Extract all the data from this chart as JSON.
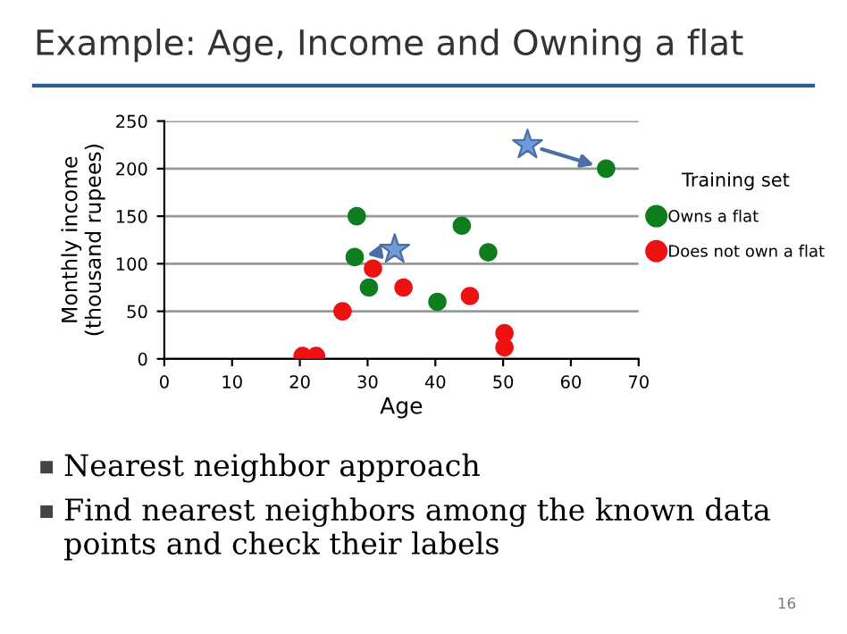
{
  "chart_data": {
    "type": "scatter",
    "title": "Example: Age, Income and Owning a flat",
    "xlabel": "Age",
    "ylabel": "Monthly income\n(thousand rupees)",
    "legend_title": "Training set",
    "series": [
      {
        "name": "Owns a flat",
        "color": "#0e7d1e",
        "x": [
          28.4,
          28.1,
          30.2,
          40.3,
          43.9,
          47.8,
          65.2
        ],
        "values": [
          150,
          107,
          75,
          60,
          140,
          112,
          200
        ]
      },
      {
        "name": "Does not own a flat",
        "color": "#ee1111",
        "x": [
          20.4,
          22.4,
          26.3,
          30.8,
          35.3,
          45.1,
          50.2,
          50.2
        ],
        "values": [
          3,
          3,
          50,
          95,
          75,
          66,
          27,
          12
        ]
      },
      {
        "color": "#6f9bd8",
        "marker": "star",
        "x": [
          34,
          53.6
        ],
        "values": [
          115,
          225
        ]
      }
    ],
    "xlim": [
      0,
      70
    ],
    "xticks": [
      0,
      10,
      20,
      30,
      40,
      50,
      60,
      70
    ],
    "ylim": [
      0,
      250
    ],
    "yticks": [
      0,
      50,
      100,
      150,
      200,
      250
    ],
    "grid": "y",
    "legend": "right",
    "marker": "circle",
    "annotations": [
      "Nearest neighbor approach",
      "Find nearest neighbors among the known data points and check their labels",
      "16"
    ]
  }
}
